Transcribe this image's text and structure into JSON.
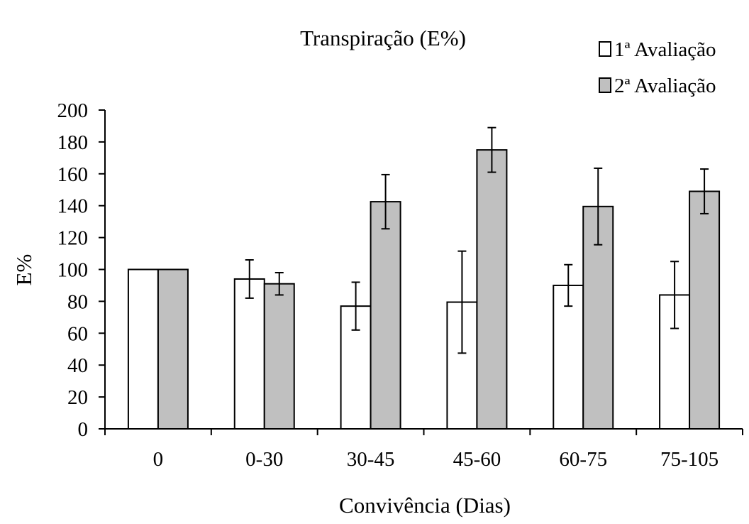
{
  "chart_data": {
    "type": "bar",
    "title": "Transpiração (E%)",
    "xlabel": "Convivência (Dias)",
    "ylabel": "E%",
    "categories": [
      "0",
      "0-30",
      "30-45",
      "45-60",
      "60-75",
      "75-105"
    ],
    "ylim": [
      0,
      200
    ],
    "yticks": [
      0,
      20,
      40,
      60,
      80,
      100,
      120,
      140,
      160,
      180,
      200
    ],
    "grid": false,
    "legend_position": "top-right",
    "series": [
      {
        "name": "1ª Avaliação",
        "color": "#ffffff",
        "values": [
          100,
          94,
          77,
          79.5,
          90,
          84
        ],
        "error": [
          0,
          12,
          15,
          32,
          13,
          21
        ]
      },
      {
        "name": "2ª Avaliação",
        "color": "#c0c0c0",
        "values": [
          100,
          91,
          142.5,
          175,
          139.5,
          149
        ],
        "error": [
          0,
          7,
          17,
          14,
          24,
          14
        ]
      }
    ]
  }
}
